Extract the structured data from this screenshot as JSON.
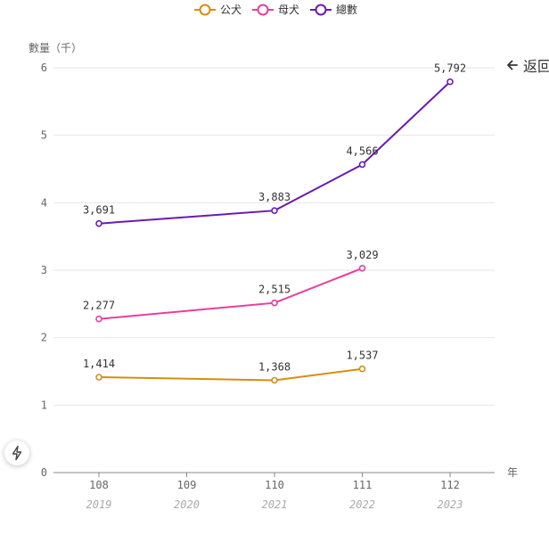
{
  "back_link": {
    "label": "返回",
    "icon": "arrow-left-icon"
  },
  "fab": {
    "icon": "bolt-icon"
  },
  "chart_data": {
    "type": "line",
    "ylabel": "數量（千）",
    "xlabel": "年",
    "categories": [
      "108",
      "109",
      "110",
      "111",
      "112"
    ],
    "categories_secondary": [
      "2019",
      "2020",
      "2021",
      "2022",
      "2023"
    ],
    "ylim": [
      0,
      6
    ],
    "yticks": [
      0,
      1,
      2,
      3,
      4,
      5,
      6
    ],
    "grid": true,
    "legend_position": "top-center",
    "series": [
      {
        "name": "公犬",
        "color": "#d4900e",
        "x": [
          "108",
          "110",
          "111"
        ],
        "values": [
          1.414,
          1.368,
          1.537
        ],
        "labels": [
          "1,414",
          "1,368",
          "1,537"
        ]
      },
      {
        "name": "母犬",
        "color": "#e83e9c",
        "x": [
          "108",
          "110",
          "111"
        ],
        "values": [
          2.277,
          2.515,
          3.029
        ],
        "labels": [
          "2,277",
          "2,515",
          "3,029"
        ]
      },
      {
        "name": "總數",
        "color": "#6b1bb0",
        "x": [
          "108",
          "110",
          "111",
          "112"
        ],
        "values": [
          3.691,
          3.883,
          4.566,
          5.792
        ],
        "labels": [
          "3,691",
          "3,883",
          "4,566",
          "5,792"
        ]
      }
    ]
  }
}
